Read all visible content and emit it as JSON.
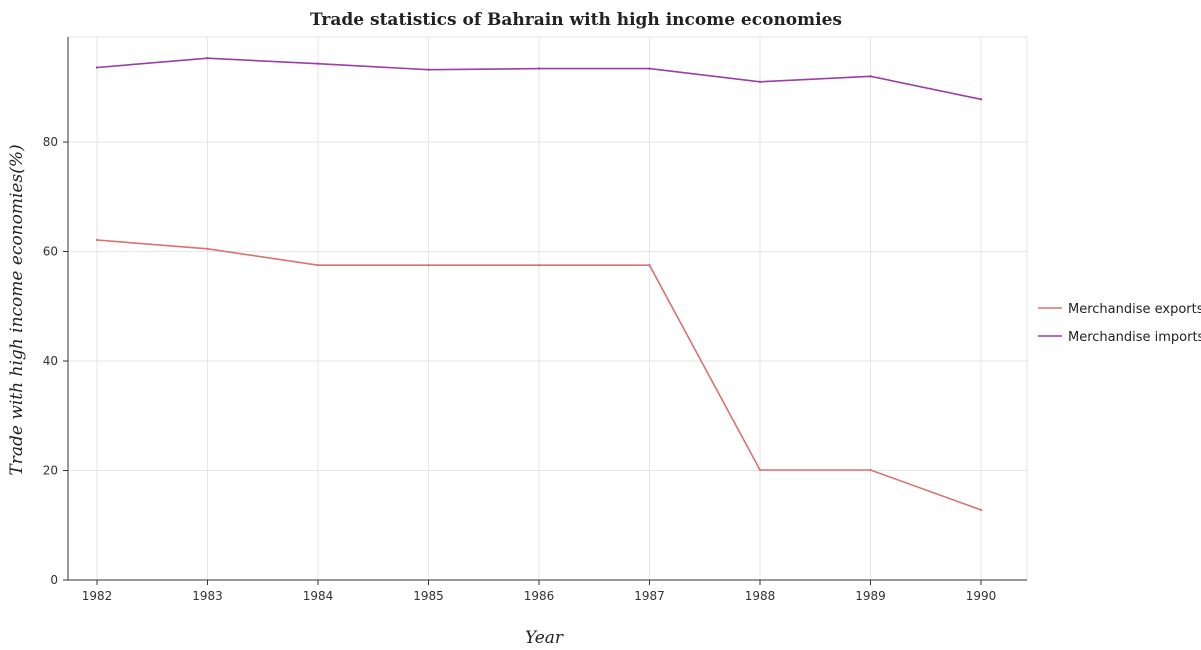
{
  "chart_data": {
    "type": "line",
    "title": "Trade statistics of Bahrain with high income economies",
    "xlabel": "Year",
    "ylabel": "Trade with high income economies(%)",
    "categories": [
      "1982",
      "1983",
      "1984",
      "1985",
      "1986",
      "1987",
      "1988",
      "1989",
      "1990"
    ],
    "ylim": [
      0,
      100
    ],
    "yticks": [
      "0",
      "20",
      "40",
      "60",
      "80"
    ],
    "grid": true,
    "legend_position": "right",
    "series": [
      {
        "name": "Merchandise exports",
        "color": "#d9736f",
        "values": [
          62.1,
          60.5,
          57.5,
          57.5,
          57.5,
          57.5,
          20.1,
          20.1,
          12.8
        ]
      },
      {
        "name": "Merchandise imports",
        "color": "#9b3ea8",
        "values": [
          93.6,
          95.3,
          94.3,
          93.2,
          93.4,
          93.4,
          91.0,
          92.0,
          87.8
        ]
      }
    ]
  }
}
